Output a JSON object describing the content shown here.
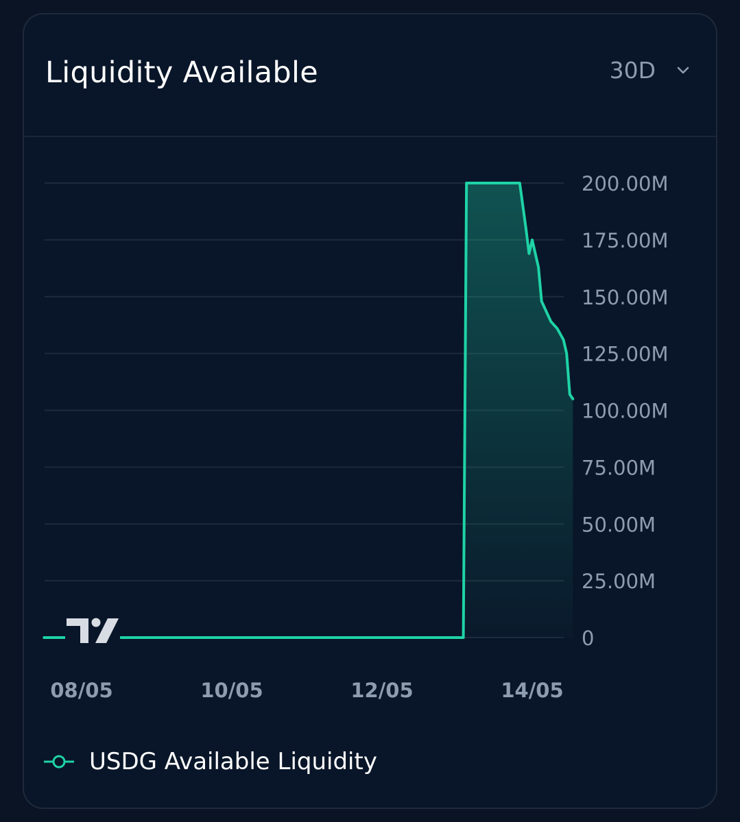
{
  "card": {
    "title": "Liquidity Available",
    "range_select": {
      "value": "30D",
      "icon": "chevron-down-icon"
    }
  },
  "chart_data": {
    "type": "area",
    "title": "Liquidity Available",
    "xlabel": "",
    "ylabel": "",
    "ylim": [
      0,
      200000000
    ],
    "x_tick_labels": [
      "08/05",
      "10/05",
      "12/05",
      "14/05"
    ],
    "y_tick_labels": [
      "200.00M",
      "175.00M",
      "150.00M",
      "125.00M",
      "100.00M",
      "75.00M",
      "50.00M",
      "25.00M",
      "0"
    ],
    "grid": true,
    "legend_position": "bottom-left",
    "series": [
      {
        "name": "USDG Available Liquidity",
        "color": "#1fd3a6",
        "points": [
          [
            "07/05 12:00",
            0
          ],
          [
            "08/05",
            0
          ],
          [
            "09/05",
            0
          ],
          [
            "10/05",
            0
          ],
          [
            "11/05",
            0
          ],
          [
            "12/05",
            0
          ],
          [
            "13/05 02:00",
            0
          ],
          [
            "13/05 03:00",
            200000000
          ],
          [
            "13/05 12:00",
            200000000
          ],
          [
            "13/05 20:00",
            200000000
          ],
          [
            "13/05 22:00",
            180000000
          ],
          [
            "13/05 23:00",
            169000000
          ],
          [
            "14/05 00:00",
            175000000
          ],
          [
            "14/05 02:00",
            163000000
          ],
          [
            "14/05 03:00",
            148000000
          ],
          [
            "14/05 05:00",
            142000000
          ],
          [
            "14/05 06:00",
            139000000
          ],
          [
            "14/05 08:00",
            136000000
          ],
          [
            "14/05 10:00",
            131000000
          ],
          [
            "14/05 11:00",
            125000000
          ],
          [
            "14/05 12:00",
            107000000
          ],
          [
            "14/05 13:00",
            105000000
          ]
        ]
      }
    ]
  },
  "legend": {
    "label": "USDG Available Liquidity",
    "marker_icon": "line-circle-marker-icon"
  },
  "watermark": {
    "icon": "tradingview-logo-icon"
  }
}
